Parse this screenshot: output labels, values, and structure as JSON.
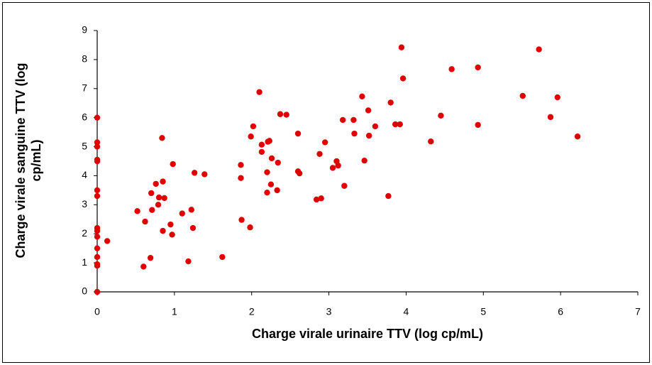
{
  "chart_data": {
    "type": "scatter",
    "xlabel": "Charge virale urinaire TTV (log cp/mL)",
    "ylabel": [
      "Charge virale sanguine TTV (log",
      "cp/mL)"
    ],
    "color": "#e00000",
    "xlim": [
      0,
      7
    ],
    "xticks": [
      0,
      1,
      2,
      3,
      4,
      5,
      6,
      7
    ],
    "ylim": [
      0,
      9
    ],
    "yticks": [
      0,
      1,
      2,
      3,
      4,
      5,
      6,
      7,
      8,
      9
    ],
    "grid": false,
    "x": [
      0,
      0,
      0,
      0,
      0,
      0,
      0,
      0,
      0,
      0,
      0,
      0,
      0,
      0,
      0,
      0.13,
      0.52,
      0.6,
      0.62,
      0.69,
      0.7,
      0.71,
      0.76,
      0.79,
      0.8,
      0.84,
      0.85,
      0.85,
      0.87,
      0.95,
      0.97,
      0.98,
      1.1,
      1.18,
      1.22,
      1.24,
      1.26,
      1.39,
      1.62,
      1.86,
      1.86,
      1.87,
      1.98,
      1.99,
      2.02,
      2.1,
      2.13,
      2.13,
      2.2,
      2.2,
      2.21,
      2.23,
      2.25,
      2.26,
      2.33,
      2.34,
      2.37,
      2.45,
      2.6,
      2.6,
      2.62,
      2.84,
      2.88,
      2.9,
      2.95,
      3.05,
      3.1,
      3.12,
      3.18,
      3.2,
      3.32,
      3.33,
      3.43,
      3.46,
      3.51,
      3.52,
      3.6,
      3.77,
      3.8,
      3.86,
      3.92,
      3.94,
      3.96,
      4.32,
      4.45,
      4.59,
      4.93,
      4.93,
      5.51,
      5.72,
      5.87,
      5.96,
      6.22
    ],
    "y": [
      0,
      0.95,
      0.9,
      1.2,
      1.5,
      1.9,
      2.1,
      2.2,
      3.3,
      3.5,
      4.5,
      4.55,
      5.0,
      5.15,
      6.0,
      1.75,
      2.78,
      0.87,
      2.42,
      1.17,
      3.4,
      2.82,
      3.72,
      3.0,
      3.25,
      5.3,
      2.1,
      3.8,
      3.23,
      2.32,
      1.97,
      4.4,
      2.7,
      1.05,
      2.83,
      2.2,
      4.1,
      4.05,
      1.2,
      4.37,
      3.92,
      2.48,
      2.22,
      5.35,
      5.7,
      6.88,
      5.07,
      4.82,
      4.12,
      3.42,
      5.17,
      5.2,
      3.7,
      4.6,
      3.5,
      4.45,
      6.12,
      6.1,
      5.45,
      4.15,
      4.08,
      3.18,
      4.75,
      3.22,
      5.15,
      4.27,
      4.5,
      4.35,
      5.92,
      3.65,
      5.92,
      5.45,
      6.73,
      4.52,
      6.25,
      5.38,
      5.7,
      3.3,
      6.52,
      5.77,
      5.77,
      8.42,
      7.35,
      5.18,
      6.07,
      7.67,
      7.73,
      5.75,
      6.75,
      8.35,
      6.02,
      6.7,
      5.35
    ]
  }
}
